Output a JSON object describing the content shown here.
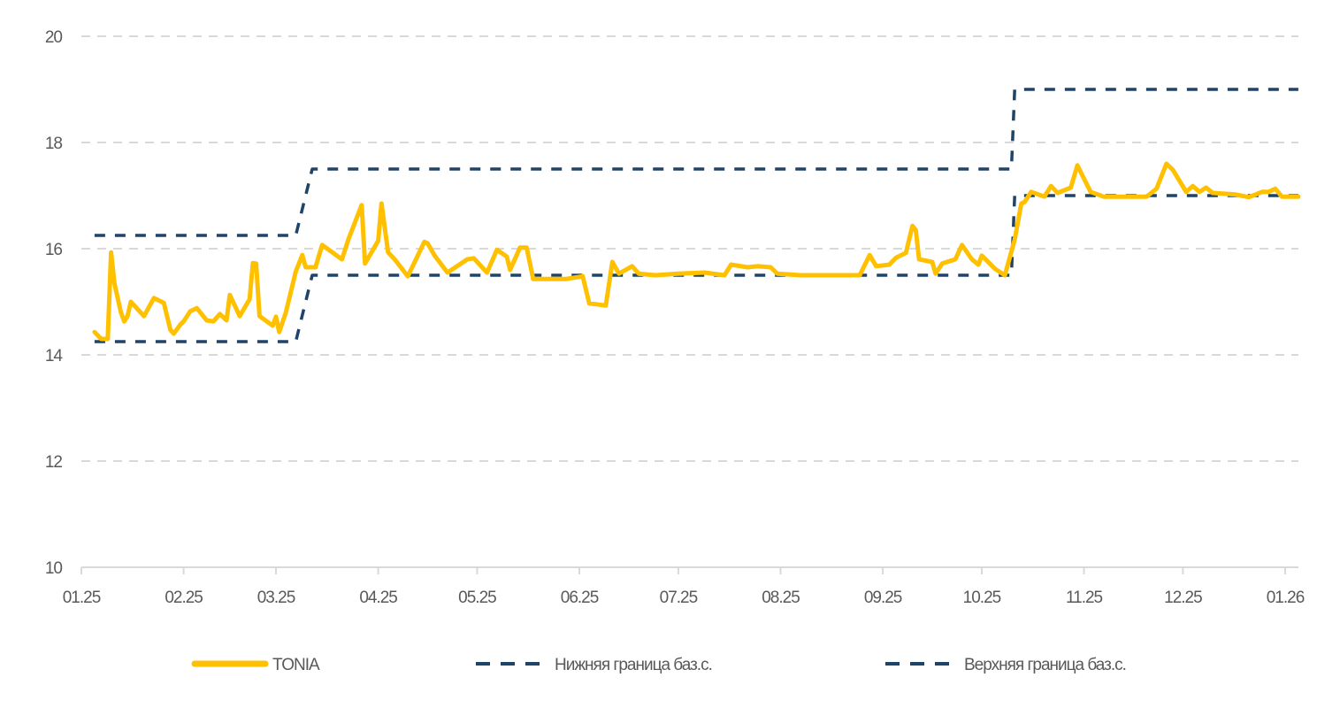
{
  "chart_data": {
    "type": "line",
    "title": "",
    "xlabel": "",
    "ylabel": "",
    "ylim": [
      10,
      20
    ],
    "yticks": [
      10,
      12,
      14,
      16,
      18,
      20
    ],
    "xlim": [
      "2025-01-01",
      "2026-01-05"
    ],
    "xticks": [
      {
        "date": "2025-01-01",
        "label": "01.25"
      },
      {
        "date": "2025-02-01",
        "label": "02.25"
      },
      {
        "date": "2025-03-01",
        "label": "03.25"
      },
      {
        "date": "2025-04-01",
        "label": "04.25"
      },
      {
        "date": "2025-05-01",
        "label": "05.25"
      },
      {
        "date": "2025-06-01",
        "label": "06.25"
      },
      {
        "date": "2025-07-01",
        "label": "07.25"
      },
      {
        "date": "2025-08-01",
        "label": "08.25"
      },
      {
        "date": "2025-09-01",
        "label": "09.25"
      },
      {
        "date": "2025-10-01",
        "label": "10.25"
      },
      {
        "date": "2025-11-01",
        "label": "11.25"
      },
      {
        "date": "2025-12-01",
        "label": "12.25"
      },
      {
        "date": "2026-01-01",
        "label": "01.26"
      }
    ],
    "grid": "horizontal dashed",
    "legend_position": "bottom",
    "series": [
      {
        "name": "TONIA",
        "color": "#FFC000",
        "style": "solid",
        "points": [
          [
            "2025-01-05",
            14.43
          ],
          [
            "2025-01-07",
            14.3
          ],
          [
            "2025-01-09",
            14.3
          ],
          [
            "2025-01-10",
            15.93
          ],
          [
            "2025-01-11",
            15.35
          ],
          [
            "2025-01-13",
            14.8
          ],
          [
            "2025-01-14",
            14.63
          ],
          [
            "2025-01-15",
            14.73
          ],
          [
            "2025-01-16",
            15.0
          ],
          [
            "2025-01-20",
            14.73
          ],
          [
            "2025-01-23",
            15.07
          ],
          [
            "2025-01-26",
            14.98
          ],
          [
            "2025-01-28",
            14.47
          ],
          [
            "2025-01-29",
            14.4
          ],
          [
            "2025-01-31",
            14.57
          ],
          [
            "2025-02-01",
            14.63
          ],
          [
            "2025-02-03",
            14.82
          ],
          [
            "2025-02-05",
            14.88
          ],
          [
            "2025-02-08",
            14.65
          ],
          [
            "2025-02-10",
            14.63
          ],
          [
            "2025-02-12",
            14.77
          ],
          [
            "2025-02-14",
            14.65
          ],
          [
            "2025-02-15",
            15.13
          ],
          [
            "2025-02-18",
            14.73
          ],
          [
            "2025-02-21",
            15.05
          ],
          [
            "2025-02-22",
            15.73
          ],
          [
            "2025-02-23",
            15.72
          ],
          [
            "2025-02-24",
            14.73
          ],
          [
            "2025-02-28",
            14.55
          ],
          [
            "2025-03-01",
            14.72
          ],
          [
            "2025-03-02",
            14.43
          ],
          [
            "2025-03-04",
            14.8
          ],
          [
            "2025-03-07",
            15.57
          ],
          [
            "2025-03-09",
            15.88
          ],
          [
            "2025-03-10",
            15.65
          ],
          [
            "2025-03-13",
            15.65
          ],
          [
            "2025-03-15",
            16.07
          ],
          [
            "2025-03-21",
            15.8
          ],
          [
            "2025-03-23",
            16.18
          ],
          [
            "2025-03-27",
            16.82
          ],
          [
            "2025-03-28",
            15.72
          ],
          [
            "2025-04-01",
            16.15
          ],
          [
            "2025-04-02",
            16.85
          ],
          [
            "2025-04-04",
            15.93
          ],
          [
            "2025-04-06",
            15.8
          ],
          [
            "2025-04-10",
            15.48
          ],
          [
            "2025-04-15",
            16.13
          ],
          [
            "2025-04-16",
            16.1
          ],
          [
            "2025-04-18",
            15.88
          ],
          [
            "2025-04-22",
            15.55
          ],
          [
            "2025-04-28",
            15.8
          ],
          [
            "2025-04-30",
            15.82
          ],
          [
            "2025-05-04",
            15.55
          ],
          [
            "2025-05-07",
            15.98
          ],
          [
            "2025-05-10",
            15.85
          ],
          [
            "2025-05-11",
            15.6
          ],
          [
            "2025-05-14",
            16.02
          ],
          [
            "2025-05-16",
            16.02
          ],
          [
            "2025-05-18",
            15.43
          ],
          [
            "2025-05-28",
            15.43
          ],
          [
            "2025-06-02",
            15.48
          ],
          [
            "2025-06-04",
            14.97
          ],
          [
            "2025-06-09",
            14.93
          ],
          [
            "2025-06-11",
            15.75
          ],
          [
            "2025-06-13",
            15.53
          ],
          [
            "2025-06-17",
            15.67
          ],
          [
            "2025-06-19",
            15.53
          ],
          [
            "2025-06-24",
            15.5
          ],
          [
            "2025-07-01",
            15.53
          ],
          [
            "2025-07-09",
            15.55
          ],
          [
            "2025-07-15",
            15.5
          ],
          [
            "2025-07-17",
            15.7
          ],
          [
            "2025-07-22",
            15.65
          ],
          [
            "2025-07-25",
            15.67
          ],
          [
            "2025-07-29",
            15.65
          ],
          [
            "2025-07-31",
            15.53
          ],
          [
            "2025-08-07",
            15.5
          ],
          [
            "2025-08-25",
            15.5
          ],
          [
            "2025-08-28",
            15.88
          ],
          [
            "2025-08-30",
            15.67
          ],
          [
            "2025-09-03",
            15.7
          ],
          [
            "2025-09-05",
            15.83
          ],
          [
            "2025-09-08",
            15.92
          ],
          [
            "2025-09-10",
            16.43
          ],
          [
            "2025-09-11",
            16.35
          ],
          [
            "2025-09-12",
            15.8
          ],
          [
            "2025-09-16",
            15.75
          ],
          [
            "2025-09-17",
            15.53
          ],
          [
            "2025-09-19",
            15.72
          ],
          [
            "2025-09-23",
            15.8
          ],
          [
            "2025-09-25",
            16.07
          ],
          [
            "2025-09-28",
            15.8
          ],
          [
            "2025-09-30",
            15.7
          ],
          [
            "2025-10-01",
            15.87
          ],
          [
            "2025-10-05",
            15.62
          ],
          [
            "2025-10-08",
            15.5
          ],
          [
            "2025-10-11",
            16.17
          ],
          [
            "2025-10-13",
            16.85
          ],
          [
            "2025-10-14",
            16.88
          ],
          [
            "2025-10-16",
            17.07
          ],
          [
            "2025-10-20",
            16.98
          ],
          [
            "2025-10-22",
            17.18
          ],
          [
            "2025-10-24",
            17.05
          ],
          [
            "2025-10-28",
            17.15
          ],
          [
            "2025-10-30",
            17.57
          ],
          [
            "2025-11-01",
            17.32
          ],
          [
            "2025-11-03",
            17.07
          ],
          [
            "2025-11-07",
            16.98
          ],
          [
            "2025-11-20",
            16.98
          ],
          [
            "2025-11-23",
            17.13
          ],
          [
            "2025-11-26",
            17.6
          ],
          [
            "2025-11-28",
            17.48
          ],
          [
            "2025-12-02",
            17.07
          ],
          [
            "2025-12-04",
            17.18
          ],
          [
            "2025-12-06",
            17.07
          ],
          [
            "2025-12-08",
            17.15
          ],
          [
            "2025-12-10",
            17.05
          ],
          [
            "2025-12-17",
            17.02
          ],
          [
            "2025-12-21",
            16.97
          ],
          [
            "2025-12-25",
            17.07
          ],
          [
            "2025-12-27",
            17.07
          ],
          [
            "2025-12-29",
            17.13
          ],
          [
            "2025-12-31",
            16.98
          ],
          [
            "2026-01-05",
            16.98
          ]
        ]
      },
      {
        "name": "Нижняя граница баз.с.",
        "color": "#1F4468",
        "style": "dashed",
        "points": [
          [
            "2025-01-05",
            14.25
          ],
          [
            "2025-03-07",
            14.25
          ],
          [
            "2025-03-12",
            15.5
          ],
          [
            "2025-10-10",
            15.5
          ],
          [
            "2025-10-11",
            17.0
          ],
          [
            "2026-01-05",
            17.0
          ]
        ]
      },
      {
        "name": "Верхняя граница баз.с.",
        "color": "#1F4468",
        "style": "dashed",
        "points": [
          [
            "2025-01-05",
            16.25
          ],
          [
            "2025-03-07",
            16.25
          ],
          [
            "2025-03-12",
            17.5
          ],
          [
            "2025-10-10",
            17.5
          ],
          [
            "2025-10-11",
            19.0
          ],
          [
            "2026-01-05",
            19.0
          ]
        ]
      }
    ]
  }
}
